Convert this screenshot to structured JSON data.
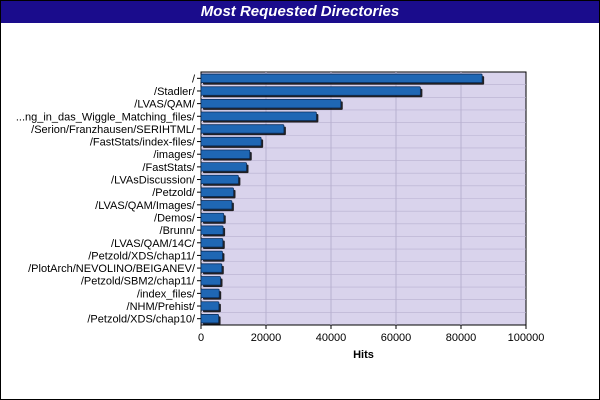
{
  "chart_data": {
    "type": "bar",
    "orientation": "horizontal",
    "title": "Most Requested Directories",
    "xlabel": "Hits",
    "ylabel": "",
    "xlim": [
      0,
      100000
    ],
    "xticks": [
      "0",
      "20000",
      "40000",
      "60000",
      "80000",
      "100000"
    ],
    "grid": true,
    "categories": [
      "/",
      "/Stadler/",
      "/LVAS/QAM/",
      "...ng_in_das_Wiggle_Matching_files/",
      "/Serion/Franzhausen/SERIHTML/",
      "/FastStats/index-files/",
      "/images/",
      "/FastStats/",
      "/LVAsDiscussion/",
      "/Petzold/",
      "/LVAS/QAM/Images/",
      "/Demos/",
      "/Brunn/",
      "/LVAS/QAM/14C/",
      "/Petzold/XDS/chap11/",
      "/PlotArch/NEVOLINO/BEIGANEV/",
      "/Petzold/SBM2/chap11/",
      "/index_files/",
      "/NHM/Prehist/",
      "/Petzold/XDS/chap10/"
    ],
    "values": [
      86500,
      67500,
      43000,
      35500,
      25500,
      18500,
      15000,
      14000,
      11500,
      10000,
      9500,
      7000,
      6800,
      6700,
      6600,
      6400,
      6000,
      5600,
      5500,
      5400
    ],
    "colors": {
      "bar": "#1f67b4",
      "plot_bg": "#d9d3ec",
      "grid": "#b8b0d0",
      "title_bg": "#1a0c8c",
      "title_fg": "#ffffff"
    }
  }
}
